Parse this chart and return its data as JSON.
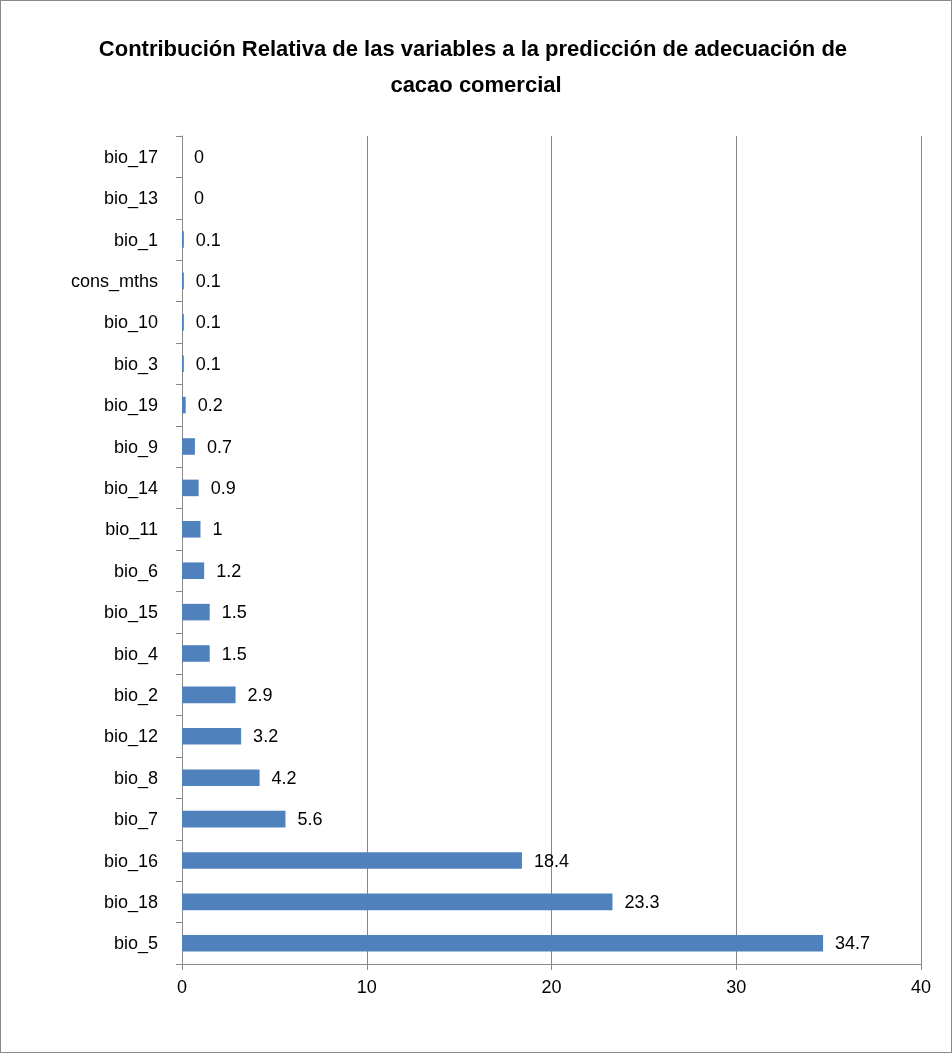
{
  "chart_data": {
    "type": "bar",
    "orientation": "horizontal",
    "title": "Contribución Relativa de las variables a la predicción de adecuación de cacao comercial",
    "categories": [
      "bio_17",
      "bio_13",
      "bio_1",
      "cons_mths",
      "bio_10",
      "bio_3",
      "bio_19",
      "bio_9",
      "bio_14",
      "bio_11",
      "bio_6",
      "bio_15",
      "bio_4",
      "bio_2",
      "bio_12",
      "bio_8",
      "bio_7",
      "bio_16",
      "bio_18",
      "bio_5"
    ],
    "values": [
      0,
      0,
      0.1,
      0.1,
      0.1,
      0.1,
      0.2,
      0.7,
      0.9,
      1,
      1.2,
      1.5,
      1.5,
      2.9,
      3.2,
      4.2,
      5.6,
      18.4,
      23.3,
      34.7
    ],
    "color": "#4f81bd",
    "xlim": [
      0,
      40
    ],
    "xticks": [
      0,
      10,
      20,
      30,
      40
    ],
    "grid": "x",
    "data_labels": true
  }
}
